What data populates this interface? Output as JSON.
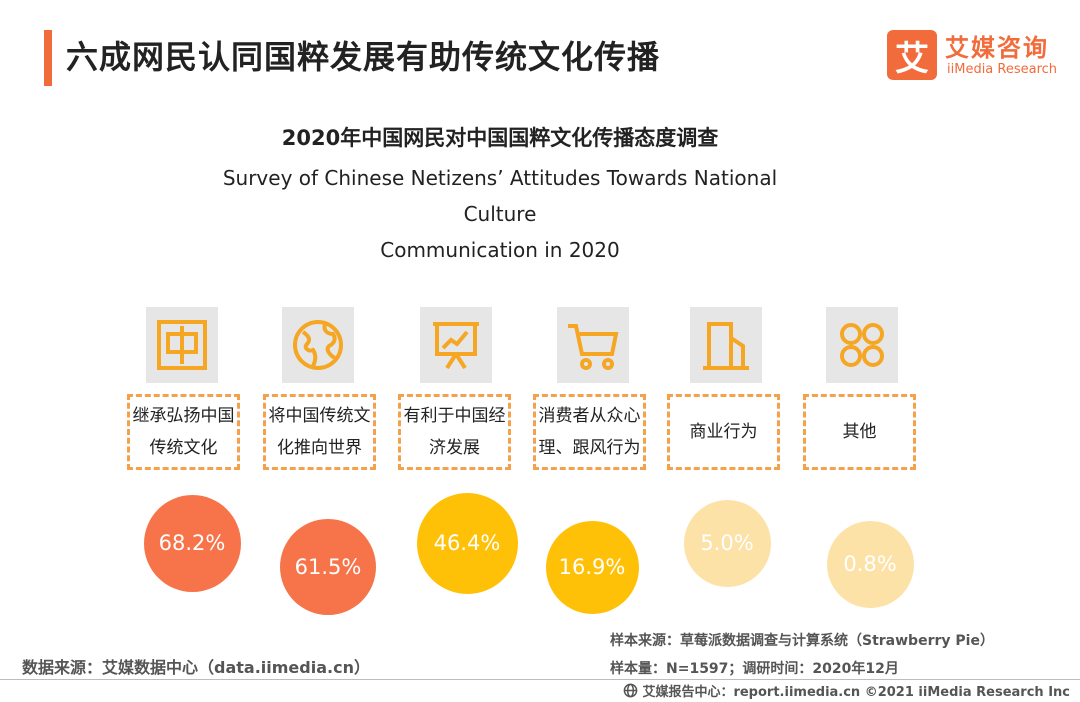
{
  "header": {
    "title": "六成网民认同国粹发展有助传统文化传播",
    "logo_mark": "艾",
    "logo_cn": "艾媒咨询",
    "logo_en": "iiMedia Research"
  },
  "chart_data": {
    "type": "bubble",
    "title": "2020年中国网民对中国国粹文化传播态度调查",
    "subtitle_line1": "Survey of Chinese Netizens’  Attitudes Towards National Culture",
    "subtitle_line2": "Communication in 2020",
    "categories": [
      "继承弘扬中国\n传统文化",
      "将中国传统文\n化推向世界",
      "有利于中国经\n济发展",
      "消费者从众心\n理、跟风行为",
      "商业行为",
      "其他"
    ],
    "values": [
      68.2,
      61.5,
      46.4,
      16.9,
      5.0,
      0.8
    ],
    "value_labels": [
      "68.2%",
      "61.5%",
      "46.4%",
      "16.9%",
      "5.0%",
      "0.8%"
    ],
    "colors": [
      "#f7744a",
      "#f7744a",
      "#ffc107",
      "#ffc107",
      "#fde2a8",
      "#fde2a8"
    ],
    "icons": [
      "china-character-icon",
      "globe-icon",
      "presentation-chart-icon",
      "shopping-cart-icon",
      "building-icon",
      "grid-dots-icon"
    ]
  },
  "footer": {
    "data_source": "数据来源：艾媒数据中心（data.iimedia.cn）",
    "sample_source": "样本来源：草莓派数据调查与计算系统（Strawberry Pie）",
    "sample_size": "样本量：N=1597；调研时间：2020年12月",
    "copyright": "艾媒报告中心：report.iimedia.cn   ©2021  iiMedia Research  Inc"
  }
}
